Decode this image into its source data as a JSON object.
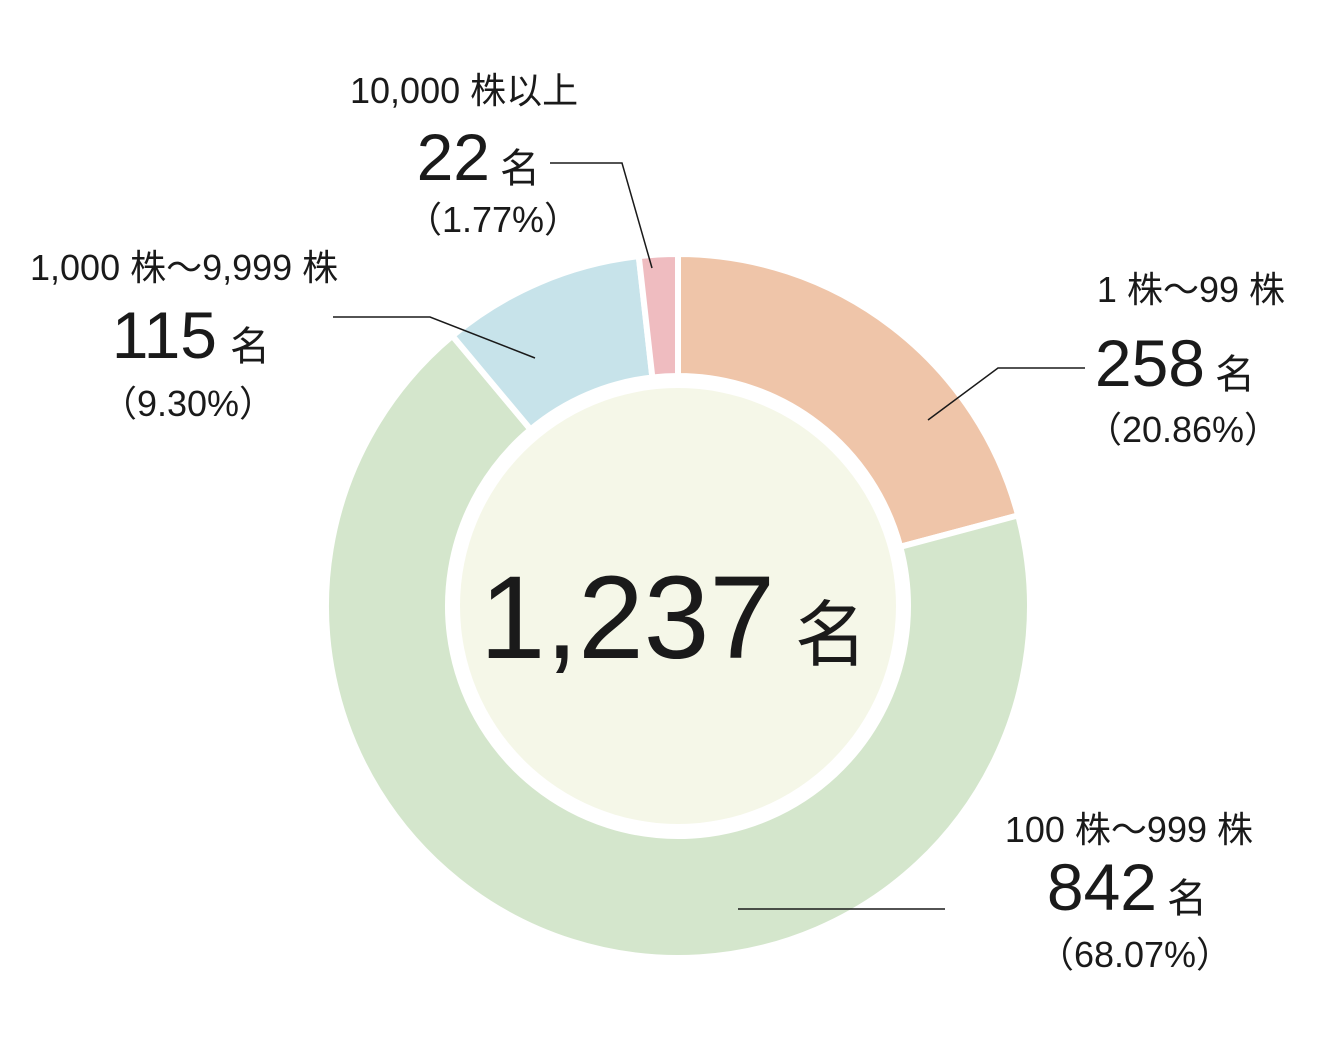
{
  "chart_data": {
    "type": "donut",
    "categories": [
      "1 株〜99 株",
      "100 株〜999 株",
      "1,000 株〜9,999 株",
      "10,000 株以上"
    ],
    "values": [
      258,
      842,
      115,
      22
    ],
    "percent_labels": [
      "（20.86%）",
      "（68.07%）",
      "（9.30%）",
      "（1.77%）"
    ],
    "colors": [
      "#efc5a9",
      "#d4e6cc",
      "#c7e3ea",
      "#efbcc0"
    ],
    "unit": "名",
    "total_label": "1,237"
  }
}
